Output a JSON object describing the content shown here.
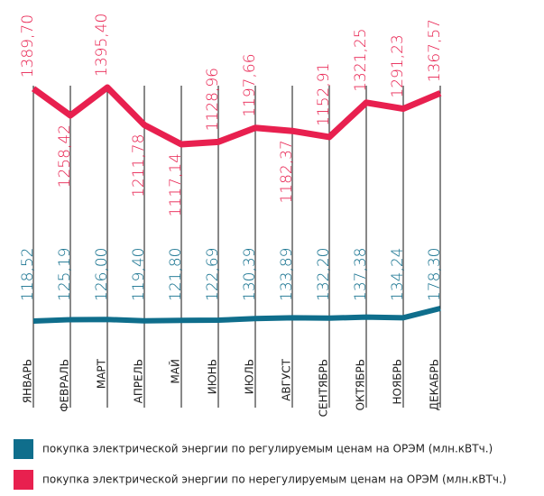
{
  "chart_data": {
    "type": "line",
    "categories": [
      "ЯНВАРЬ",
      "ФЕВРАЛЬ",
      "МАРТ",
      "АПРЕЛЬ",
      "МАЙ",
      "ИЮНЬ",
      "ИЮЛЬ",
      "АВГУСТ",
      "СЕНТЯБРЬ",
      "ОКТЯБРЬ",
      "НОЯБРЬ",
      "ДЕКАБРЬ"
    ],
    "series": [
      {
        "name": "покупка электрической энергии по регулируемым ценам на ОРЭМ (млн.кВТч.)",
        "color": "#0f6e8c",
        "values": [
          118.52,
          125.19,
          126.0,
          119.4,
          121.8,
          122.69,
          130.39,
          133.89,
          132.2,
          137.38,
          134.24,
          178.3
        ],
        "value_labels": [
          "118,52",
          "125,19",
          "126,00",
          "119,40",
          "121,80",
          "122,69",
          "130,39",
          "133,89",
          "132,20",
          "137,38",
          "134,24",
          "178,30"
        ]
      },
      {
        "name": "покупка электрической энергии по нерегулируемым ценам на ОРЭМ (млн.кВТч.)",
        "color": "#e8204f",
        "values": [
          1389.7,
          1258.42,
          1395.4,
          1211.78,
          1117.14,
          1128.96,
          1197.66,
          1182.37,
          1152.91,
          1321.25,
          1291.23,
          1367.57
        ],
        "value_labels": [
          "1389,70",
          "1258,42",
          "1395,40",
          "1211,78",
          "1117,14",
          "1128,96",
          "1197,66",
          "1182,37",
          "1152,91",
          "1321,25",
          "1291,23",
          "1367,57"
        ]
      }
    ]
  }
}
